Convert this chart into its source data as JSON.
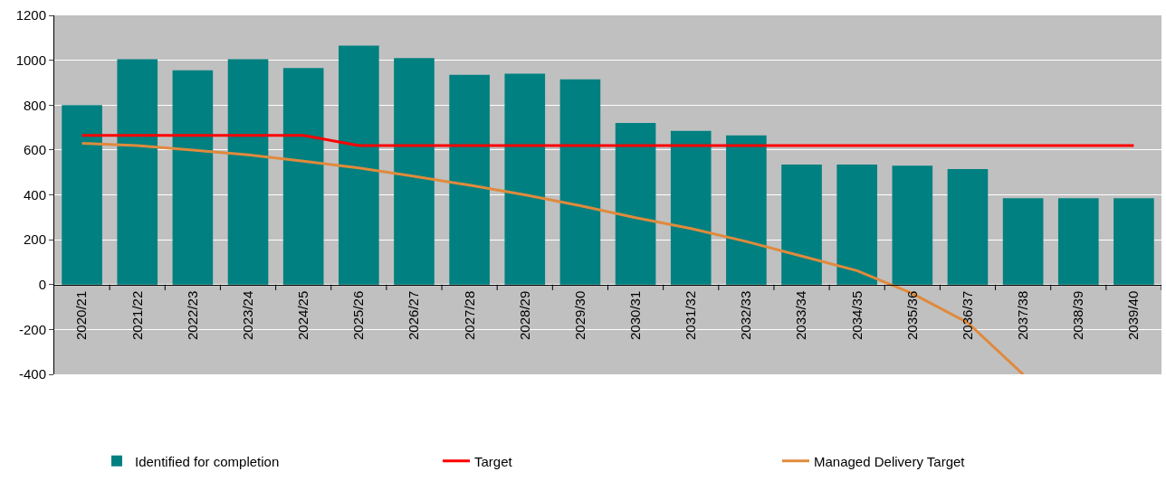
{
  "chart_data": {
    "type": "bar",
    "categories": [
      "2020/21",
      "2021/22",
      "2022/23",
      "2023/24",
      "2024/25",
      "2025/26",
      "2026/27",
      "2027/28",
      "2028/29",
      "2029/30",
      "2030/31",
      "2031/32",
      "2032/33",
      "2033/34",
      "2034/35",
      "2035/36",
      "2036/37",
      "2037/38",
      "2038/39",
      "2039/40"
    ],
    "series": [
      {
        "name": "Identified for completion",
        "color": "#008080",
        "values": [
          800,
          1005,
          955,
          1005,
          965,
          1065,
          1010,
          935,
          940,
          915,
          720,
          685,
          665,
          535,
          535,
          530,
          515,
          385,
          385,
          385
        ]
      },
      {
        "name": "Target",
        "type": "line",
        "color": "#ff0000",
        "values": [
          665,
          665,
          665,
          665,
          665,
          620,
          620,
          620,
          620,
          620,
          620,
          620,
          620,
          620,
          620,
          620,
          620,
          620,
          620,
          620
        ]
      },
      {
        "name": "Managed Delivery Target",
        "type": "line",
        "color": "#e08a3c",
        "values": [
          630,
          620,
          600,
          578,
          550,
          520,
          483,
          443,
          400,
          352,
          298,
          250,
          192,
          127,
          62,
          -40,
          -170,
          -400,
          null,
          null
        ]
      }
    ],
    "ylim": [
      -400,
      1200
    ],
    "yticks": [
      -400,
      -200,
      0,
      200,
      400,
      600,
      800,
      1000,
      1200
    ],
    "grid": "y",
    "legend": "bottom",
    "marker": "none",
    "line_style": "solid"
  }
}
